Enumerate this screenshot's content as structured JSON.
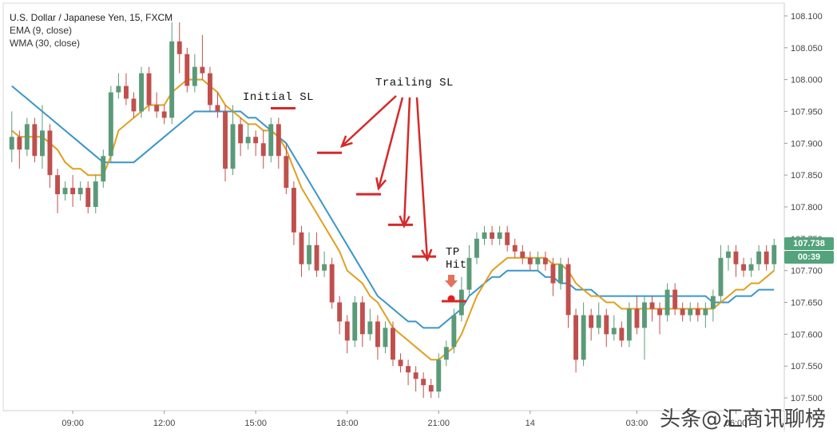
{
  "legend": {
    "title": "U.S. Dollar / Japanese Yen, 15, FXCM",
    "ema": "EMA (9, close)",
    "wma": "WMA (30, close)"
  },
  "annotations": {
    "initial_sl": "Initial SL",
    "trailing_sl": "Trailing SL",
    "tp_hit": "TP\nHit"
  },
  "price_labels": {
    "last_price": "107.738",
    "countdown": "00:39"
  },
  "watermark": "头条@汇商讯聊榜",
  "colors": {
    "bull": "#5b9a78",
    "bear": "#c0504d",
    "ema": "#e0a020",
    "wma": "#3a96c8",
    "arrow": "#d42a2a",
    "last_price_bg": "#53a37c",
    "countdown_bg": "#53a37c"
  },
  "chart_data": {
    "type": "candlestick",
    "ylim": [
      107.48,
      108.12
    ],
    "y_ticks": [
      "108.100",
      "108.050",
      "108.000",
      "107.950",
      "107.900",
      "107.850",
      "107.800",
      "107.750",
      "107.700",
      "107.650",
      "107.600",
      "107.550",
      "107.500"
    ],
    "x_ticks": [
      "09:00",
      "12:00",
      "15:00",
      "18:00",
      "21:00",
      "14",
      "03:00",
      "06:00"
    ],
    "candles": [
      [
        107.89,
        107.91,
        107.87,
        107.95
      ],
      [
        107.91,
        107.89,
        107.86,
        107.92
      ],
      [
        107.89,
        107.93,
        107.88,
        107.94
      ],
      [
        107.93,
        107.88,
        107.87,
        107.94
      ],
      [
        107.88,
        107.92,
        107.86,
        107.96
      ],
      [
        107.92,
        107.85,
        107.83,
        107.93
      ],
      [
        107.85,
        107.82,
        107.79,
        107.86
      ],
      [
        107.82,
        107.83,
        107.81,
        107.84
      ],
      [
        107.83,
        107.82,
        107.8,
        107.85
      ],
      [
        107.82,
        107.83,
        107.81,
        107.84
      ],
      [
        107.83,
        107.8,
        107.79,
        107.84
      ],
      [
        107.8,
        107.84,
        107.79,
        107.85
      ],
      [
        107.84,
        107.88,
        107.83,
        107.89
      ],
      [
        107.88,
        107.98,
        107.87,
        107.99
      ],
      [
        107.98,
        107.99,
        107.97,
        108.01
      ],
      [
        107.99,
        107.97,
        107.96,
        108.01
      ],
      [
        107.97,
        107.95,
        107.94,
        107.98
      ],
      [
        107.95,
        108.01,
        107.94,
        108.02
      ],
      [
        108.01,
        107.96,
        107.95,
        108.02
      ],
      [
        107.96,
        107.95,
        107.94,
        107.98
      ],
      [
        107.95,
        107.94,
        107.93,
        107.96
      ],
      [
        107.94,
        108.06,
        107.93,
        108.09
      ],
      [
        108.06,
        108.04,
        108.01,
        108.09
      ],
      [
        108.04,
        107.99,
        107.98,
        108.05
      ],
      [
        107.99,
        108.02,
        107.98,
        108.04
      ],
      [
        108.02,
        108.01,
        108.0,
        108.07
      ],
      [
        108.01,
        107.96,
        107.95,
        108.02
      ],
      [
        107.96,
        107.95,
        107.94,
        107.98
      ],
      [
        107.95,
        107.86,
        107.84,
        107.96
      ],
      [
        107.86,
        107.93,
        107.85,
        107.96
      ],
      [
        107.93,
        107.9,
        107.88,
        107.94
      ],
      [
        107.9,
        107.91,
        107.89,
        107.93
      ],
      [
        107.91,
        107.9,
        107.88,
        107.92
      ],
      [
        107.9,
        107.88,
        107.86,
        107.92
      ],
      [
        107.88,
        107.93,
        107.87,
        107.94
      ],
      [
        107.93,
        107.88,
        107.86,
        107.94
      ],
      [
        107.88,
        107.83,
        107.82,
        107.9
      ],
      [
        107.83,
        107.76,
        107.74,
        107.84
      ],
      [
        107.76,
        107.71,
        107.69,
        107.77
      ],
      [
        107.71,
        107.74,
        107.7,
        107.76
      ],
      [
        107.74,
        107.7,
        107.69,
        107.76
      ],
      [
        107.7,
        107.71,
        107.69,
        107.73
      ],
      [
        107.71,
        107.65,
        107.64,
        107.72
      ],
      [
        107.65,
        107.62,
        107.6,
        107.66
      ],
      [
        107.62,
        107.59,
        107.57,
        107.63
      ],
      [
        107.59,
        107.65,
        107.58,
        107.66
      ],
      [
        107.65,
        107.6,
        107.58,
        107.66
      ],
      [
        107.6,
        107.62,
        107.59,
        107.64
      ],
      [
        107.62,
        107.58,
        107.56,
        107.63
      ],
      [
        107.58,
        107.61,
        107.57,
        107.62
      ],
      [
        107.61,
        107.56,
        107.55,
        107.62
      ],
      [
        107.56,
        107.55,
        107.54,
        107.57
      ],
      [
        107.55,
        107.54,
        107.52,
        107.56
      ],
      [
        107.54,
        107.53,
        107.51,
        107.55
      ],
      [
        107.53,
        107.52,
        107.5,
        107.54
      ],
      [
        107.52,
        107.51,
        107.5,
        107.53
      ],
      [
        107.51,
        107.56,
        107.5,
        107.57
      ],
      [
        107.56,
        107.58,
        107.55,
        107.59
      ],
      [
        107.58,
        107.63,
        107.57,
        107.64
      ],
      [
        107.63,
        107.67,
        107.62,
        107.69
      ],
      [
        107.67,
        107.72,
        107.66,
        107.74
      ],
      [
        107.72,
        107.75,
        107.71,
        107.76
      ],
      [
        107.75,
        107.76,
        107.74,
        107.77
      ],
      [
        107.76,
        107.75,
        107.74,
        107.77
      ],
      [
        107.75,
        107.76,
        107.74,
        107.77
      ],
      [
        107.76,
        107.74,
        107.73,
        107.77
      ],
      [
        107.74,
        107.73,
        107.72,
        107.75
      ],
      [
        107.73,
        107.72,
        107.71,
        107.74
      ],
      [
        107.72,
        107.71,
        107.7,
        107.73
      ],
      [
        107.71,
        107.72,
        107.7,
        107.73
      ],
      [
        107.72,
        107.71,
        107.7,
        107.73
      ],
      [
        107.71,
        107.68,
        107.66,
        107.72
      ],
      [
        107.68,
        107.71,
        107.67,
        107.72
      ],
      [
        107.71,
        107.63,
        107.61,
        107.72
      ],
      [
        107.63,
        107.56,
        107.54,
        107.64
      ],
      [
        107.56,
        107.63,
        107.55,
        107.65
      ],
      [
        107.63,
        107.61,
        107.59,
        107.64
      ],
      [
        107.61,
        107.63,
        107.6,
        107.65
      ],
      [
        107.63,
        107.6,
        107.58,
        107.64
      ],
      [
        107.6,
        107.61,
        107.59,
        107.63
      ],
      [
        107.61,
        107.59,
        107.58,
        107.62
      ],
      [
        107.59,
        107.64,
        107.58,
        107.65
      ],
      [
        107.64,
        107.61,
        107.6,
        107.66
      ],
      [
        107.61,
        107.65,
        107.56,
        107.66
      ],
      [
        107.65,
        107.64,
        107.62,
        107.66
      ],
      [
        107.64,
        107.63,
        107.6,
        107.65
      ],
      [
        107.63,
        107.67,
        107.62,
        107.68
      ],
      [
        107.67,
        107.64,
        107.63,
        107.68
      ],
      [
        107.64,
        107.63,
        107.62,
        107.65
      ],
      [
        107.63,
        107.64,
        107.62,
        107.65
      ],
      [
        107.64,
        107.63,
        107.62,
        107.65
      ],
      [
        107.63,
        107.64,
        107.61,
        107.65
      ],
      [
        107.64,
        107.66,
        107.62,
        107.67
      ],
      [
        107.66,
        107.72,
        107.65,
        107.74
      ],
      [
        107.72,
        107.73,
        107.7,
        107.74
      ],
      [
        107.73,
        107.71,
        107.69,
        107.74
      ],
      [
        107.71,
        107.7,
        107.69,
        107.72
      ],
      [
        107.7,
        107.71,
        107.69,
        107.72
      ],
      [
        107.71,
        107.73,
        107.7,
        107.74
      ],
      [
        107.73,
        107.71,
        107.7,
        107.74
      ],
      [
        107.71,
        107.74,
        107.7,
        107.75
      ]
    ],
    "ema": [
      107.92,
      107.91,
      107.91,
      107.91,
      107.91,
      107.9,
      107.89,
      107.87,
      107.86,
      107.86,
      107.85,
      107.85,
      107.85,
      107.88,
      107.92,
      107.93,
      107.94,
      107.95,
      107.96,
      107.96,
      107.96,
      107.98,
      107.99,
      108.0,
      108.0,
      108.0,
      107.99,
      107.98,
      107.96,
      107.95,
      107.94,
      107.93,
      107.93,
      107.92,
      107.92,
      107.91,
      107.89,
      107.86,
      107.83,
      107.81,
      107.79,
      107.77,
      107.75,
      107.73,
      107.7,
      107.69,
      107.68,
      107.66,
      107.65,
      107.63,
      107.61,
      107.6,
      107.59,
      107.58,
      107.57,
      107.56,
      107.56,
      107.57,
      107.58,
      107.6,
      107.63,
      107.66,
      107.68,
      107.7,
      107.71,
      107.72,
      107.72,
      107.72,
      107.72,
      107.72,
      107.72,
      107.71,
      107.71,
      107.7,
      107.68,
      107.67,
      107.66,
      107.66,
      107.65,
      107.65,
      107.64,
      107.64,
      107.64,
      107.64,
      107.64,
      107.64,
      107.64,
      107.64,
      107.64,
      107.64,
      107.64,
      107.64,
      107.64,
      107.65,
      107.66,
      107.67,
      107.67,
      107.68,
      107.68,
      107.69,
      107.7
    ],
    "wma": [
      107.99,
      107.98,
      107.97,
      107.96,
      107.95,
      107.94,
      107.93,
      107.92,
      107.91,
      107.9,
      107.89,
      107.88,
      107.87,
      107.87,
      107.87,
      107.87,
      107.87,
      107.88,
      107.89,
      107.9,
      107.91,
      107.92,
      107.93,
      107.94,
      107.95,
      107.95,
      107.95,
      107.95,
      107.95,
      107.95,
      107.95,
      107.94,
      107.94,
      107.93,
      107.92,
      107.91,
      107.9,
      107.88,
      107.86,
      107.84,
      107.82,
      107.8,
      107.78,
      107.76,
      107.74,
      107.72,
      107.7,
      107.68,
      107.66,
      107.65,
      107.64,
      107.63,
      107.62,
      107.62,
      107.61,
      107.61,
      107.61,
      107.62,
      107.63,
      107.64,
      107.66,
      107.67,
      107.68,
      107.69,
      107.69,
      107.7,
      107.7,
      107.7,
      107.7,
      107.7,
      107.69,
      107.69,
      107.68,
      107.68,
      107.67,
      107.67,
      107.67,
      107.66,
      107.66,
      107.66,
      107.66,
      107.66,
      107.66,
      107.66,
      107.66,
      107.66,
      107.66,
      107.66,
      107.66,
      107.66,
      107.66,
      107.66,
      107.65,
      107.65,
      107.65,
      107.66,
      107.66,
      107.66,
      107.67,
      107.67,
      107.67
    ]
  }
}
